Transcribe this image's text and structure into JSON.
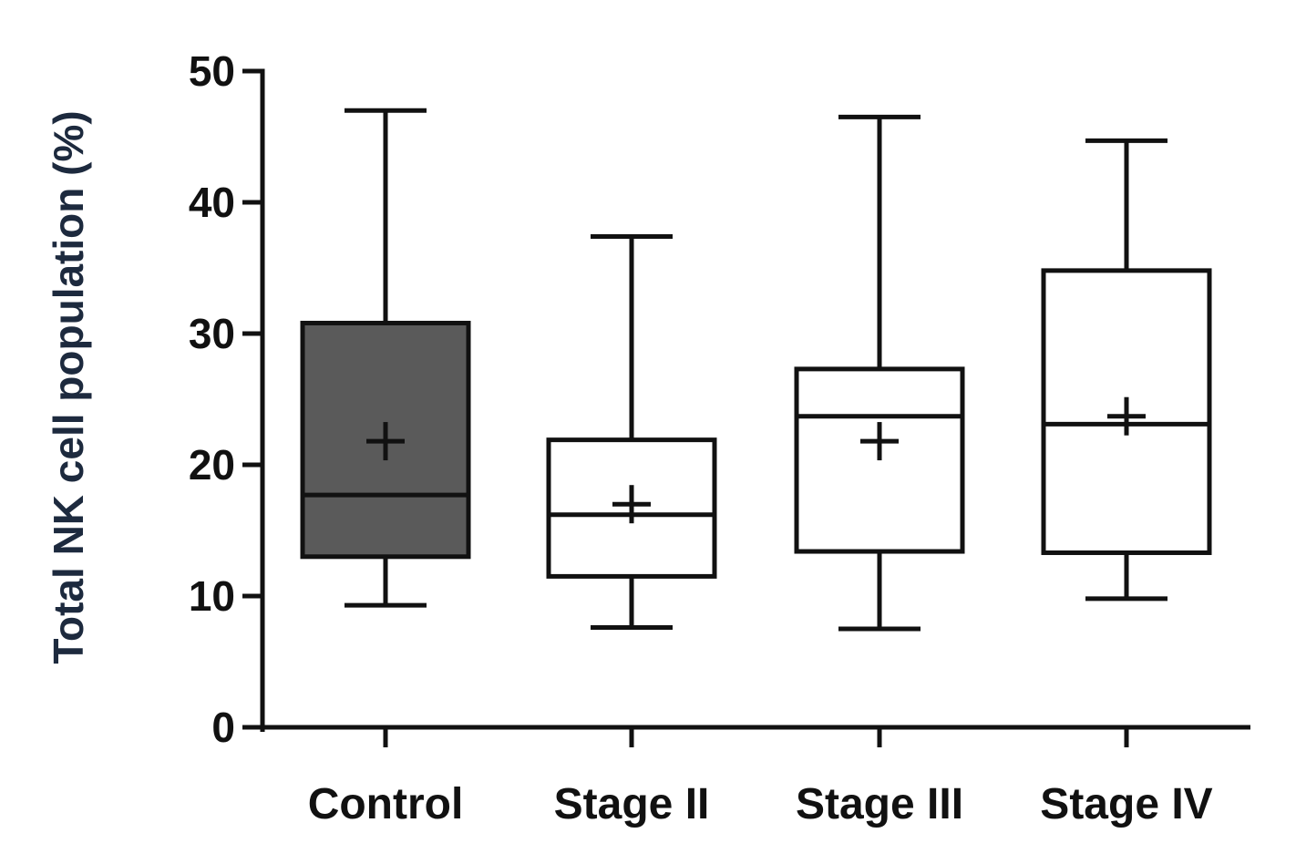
{
  "chart_data": {
    "type": "box",
    "ylabel": "Total NK cell population (%)",
    "xlabel": "",
    "ylim": [
      0,
      50
    ],
    "yticks": [
      0,
      10,
      20,
      30,
      40,
      50
    ],
    "ytick_labels": [
      "0",
      "10",
      "20",
      "30",
      "40",
      "50"
    ],
    "categories": [
      "Control",
      "Stage II",
      "Stage III",
      "Stage IV"
    ],
    "boxes": [
      {
        "category": "Control",
        "min": 9.3,
        "q1": 13.0,
        "median": 17.7,
        "q3": 30.8,
        "max": 47.0,
        "mean": 21.8,
        "fill": "#5a5a5a"
      },
      {
        "category": "Stage II",
        "min": 7.6,
        "q1": 11.5,
        "median": 16.2,
        "q3": 21.9,
        "max": 37.4,
        "mean": 17.0,
        "fill": "#ffffff"
      },
      {
        "category": "Stage III",
        "min": 7.5,
        "q1": 13.4,
        "median": 23.7,
        "q3": 27.3,
        "max": 46.5,
        "mean": 21.8,
        "fill": "#ffffff"
      },
      {
        "category": "Stage IV",
        "min": 9.8,
        "q1": 13.3,
        "median": 23.1,
        "q3": 34.8,
        "max": 44.7,
        "mean": 23.7,
        "fill": "#ffffff"
      }
    ]
  }
}
